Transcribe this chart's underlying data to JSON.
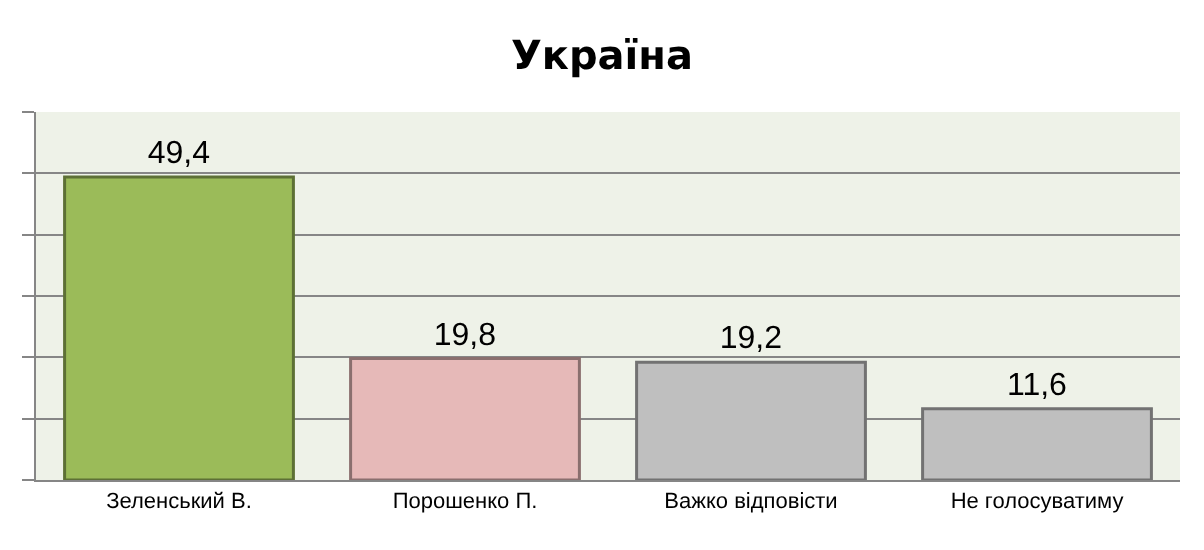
{
  "chart_data": {
    "type": "bar",
    "title": "Україна",
    "categories": [
      "Зеленський В.",
      "Порошенко П.",
      "Важко відповісти",
      "Не голосуватиму"
    ],
    "values": [
      49.4,
      19.8,
      19.2,
      11.6
    ],
    "colors": [
      "#9bbb59",
      "#e6b9b8",
      "#bfbfbf",
      "#bfbfbf"
    ],
    "ylim": [
      0,
      60
    ],
    "yticks": [
      {
        "value": 0,
        "label": null
      },
      {
        "value": 10,
        "label": null
      },
      {
        "value": 20,
        "label": null
      },
      {
        "value": 30,
        "label": null
      },
      {
        "value": 40,
        "label": null
      },
      {
        "value": 50,
        "label": null
      },
      {
        "value": 60,
        "label": null
      }
    ],
    "value_labels": [
      "49,4",
      "19,8",
      "19,2",
      "11,6"
    ],
    "tick_labels": "x",
    "grid": "y",
    "legend": false
  }
}
